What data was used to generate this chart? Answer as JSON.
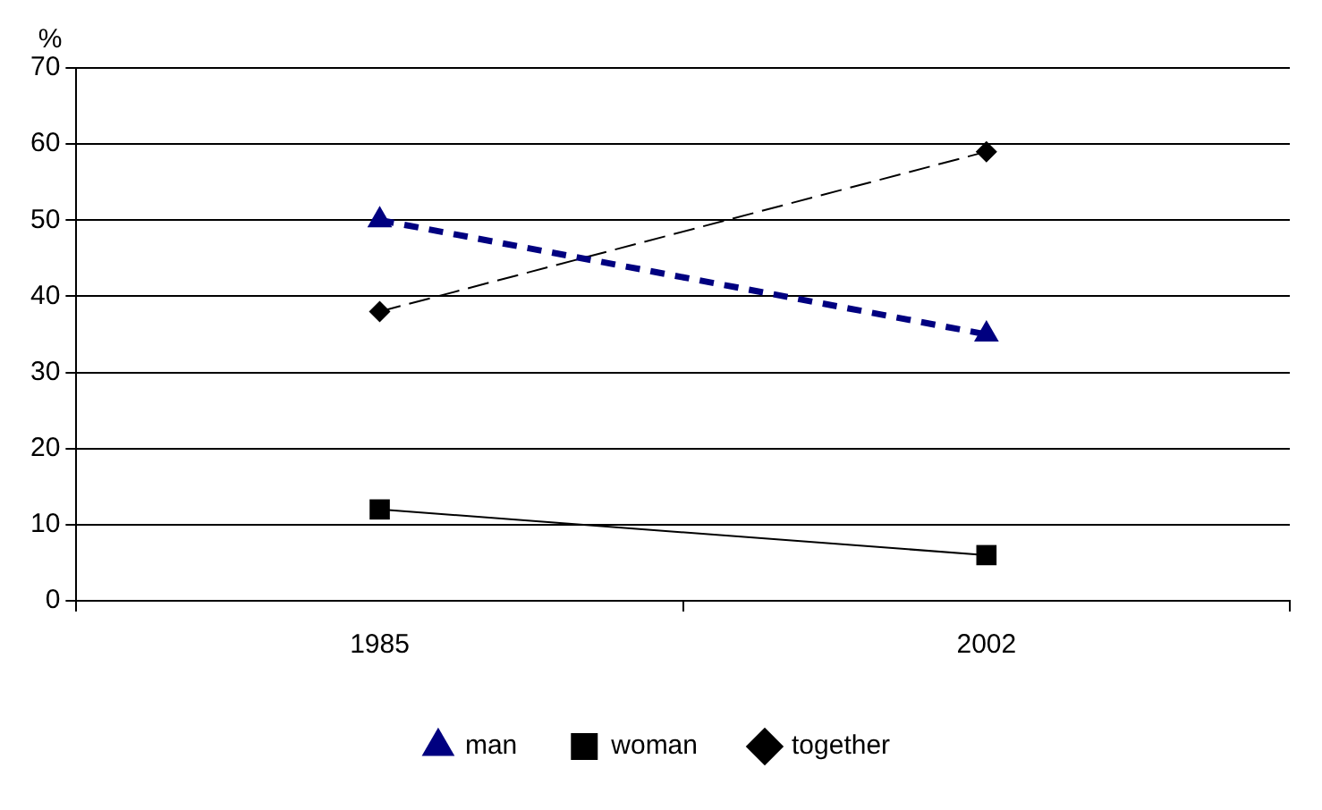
{
  "chart_data": {
    "type": "line",
    "ylabel": "%",
    "categories": [
      "1985",
      "2002"
    ],
    "series": [
      {
        "name": "man",
        "color": "#000080",
        "values": [
          50,
          35
        ],
        "marker": "triangle",
        "line_style": "dashed"
      },
      {
        "name": "woman",
        "color": "#000000",
        "values": [
          12,
          6
        ],
        "marker": "square",
        "line_style": "solid"
      },
      {
        "name": "together",
        "color": "#000000",
        "values": [
          38,
          59
        ],
        "marker": "diamond",
        "line_style": "dashed"
      }
    ],
    "ylim": [
      0,
      70
    ],
    "yticks": [
      0,
      10,
      20,
      30,
      40,
      50,
      60,
      70
    ],
    "grid": "y",
    "legend": "bottom"
  }
}
